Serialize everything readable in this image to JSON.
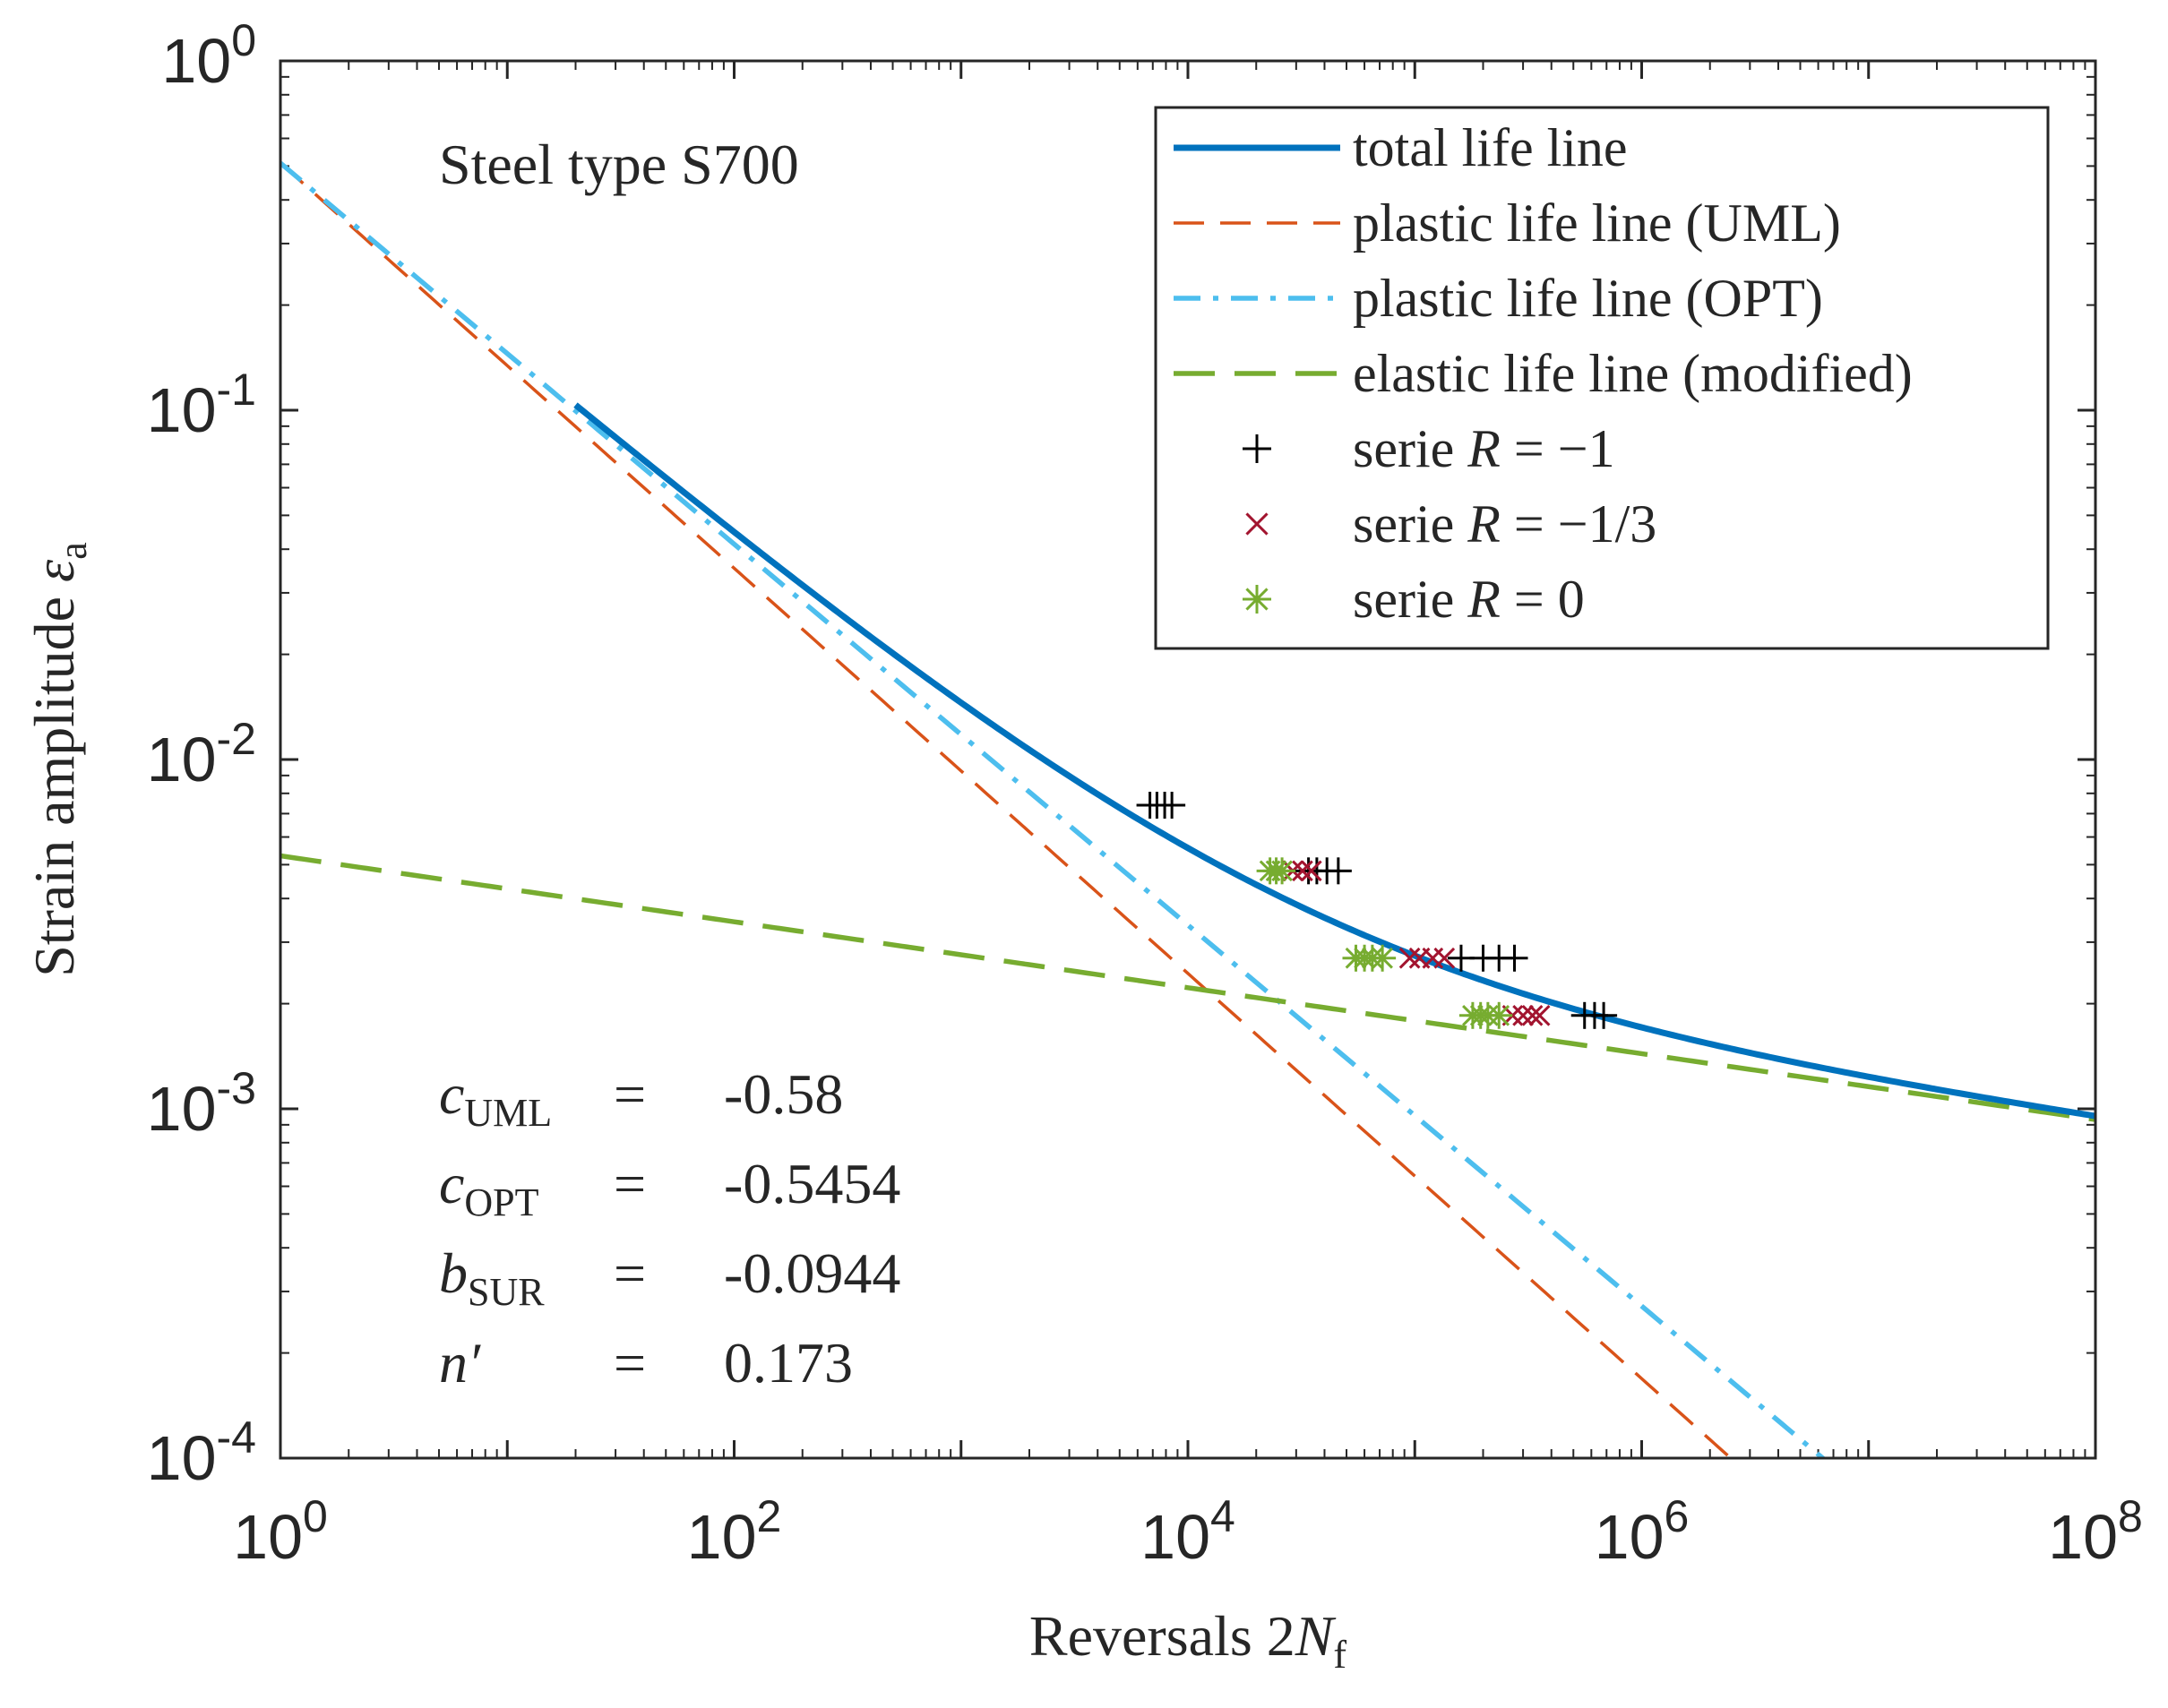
{
  "chart_data": {
    "type": "line",
    "x_scale": "log",
    "y_scale": "log",
    "xlim": [
      1,
      100000000
    ],
    "ylim": [
      0.0001,
      1
    ],
    "xlabel": {
      "text": "Reversals 2",
      "var": "N",
      "sub": "f"
    },
    "ylabel": {
      "text": "Strain amplitude ",
      "var": "ε",
      "sub": "a"
    },
    "x_ticks": [
      {
        "value": 1,
        "base": "10",
        "exp": "0"
      },
      {
        "value": 100,
        "base": "10",
        "exp": "2"
      },
      {
        "value": 10000,
        "base": "10",
        "exp": "4"
      },
      {
        "value": 1000000,
        "base": "10",
        "exp": "6"
      },
      {
        "value": 100000000,
        "base": "10",
        "exp": "8"
      }
    ],
    "y_ticks": [
      {
        "value": 0.0001,
        "base": "10",
        "exp": "-4"
      },
      {
        "value": 0.001,
        "base": "10",
        "exp": "-3"
      },
      {
        "value": 0.01,
        "base": "10",
        "exp": "-2"
      },
      {
        "value": 0.1,
        "base": "10",
        "exp": "-1"
      },
      {
        "value": 1,
        "base": "10",
        "exp": "0"
      }
    ],
    "title_annotation": "Steel type S700",
    "params": {
      "eps_f": 0.51,
      "c_opt": -0.5454,
      "c_uml": -0.58,
      "elastic_coeff": 0.0053,
      "b_sur": -0.0944,
      "total_start_x": 20,
      "total_end_x": 100000000
    },
    "series": [
      {
        "name": "total life line",
        "color": "#0072bd",
        "style": "solid",
        "kind": "total"
      },
      {
        "name": "plastic life line (UML)",
        "color": "#d95319",
        "style": "dash",
        "kind": "plastic_uml"
      },
      {
        "name": "plastic life line (OPT)",
        "color": "#4dbeee",
        "style": "dashdot",
        "kind": "plastic_opt"
      },
      {
        "name": "elastic life line (modified)",
        "color": "#77ac30",
        "style": "dash-long",
        "kind": "elastic"
      }
    ],
    "scatter": [
      {
        "name": "serie R = -1",
        "legend": {
          "prefix": "serie ",
          "var": "R",
          "eq": " = −1"
        },
        "marker": "+",
        "color": "#000000",
        "points": [
          [
            6800,
            0.0074
          ],
          [
            7300,
            0.0074
          ],
          [
            7900,
            0.0074
          ],
          [
            8500,
            0.0074
          ],
          [
            34000,
            0.0048
          ],
          [
            37000,
            0.0048
          ],
          [
            41000,
            0.0048
          ],
          [
            46000,
            0.0048
          ],
          [
            160000,
            0.0027
          ],
          [
            200000,
            0.0027
          ],
          [
            235000,
            0.0027
          ],
          [
            275000,
            0.0027
          ],
          [
            560000,
            0.00185
          ],
          [
            620000,
            0.00185
          ],
          [
            680000,
            0.00185
          ]
        ]
      },
      {
        "name": "serie R = -1/3",
        "legend": {
          "prefix": "serie ",
          "var": "R",
          "eq": " = −1/3"
        },
        "marker": "x",
        "color": "#a2142f",
        "points": [
          [
            29000,
            0.0048
          ],
          [
            32000,
            0.0048
          ],
          [
            35000,
            0.0048
          ],
          [
            95000,
            0.0027
          ],
          [
            105000,
            0.0027
          ],
          [
            120000,
            0.0027
          ],
          [
            135000,
            0.0027
          ],
          [
            270000,
            0.00185
          ],
          [
            300000,
            0.00185
          ],
          [
            330000,
            0.00185
          ],
          [
            355000,
            0.00185
          ]
        ]
      },
      {
        "name": "serie R = 0",
        "legend": {
          "prefix": "serie ",
          "var": "R",
          "eq": " = 0"
        },
        "marker": "*",
        "color": "#77ac30",
        "points": [
          [
            23000,
            0.0048
          ],
          [
            24500,
            0.0048
          ],
          [
            26000,
            0.0048
          ],
          [
            55000,
            0.0027
          ],
          [
            60000,
            0.0027
          ],
          [
            65000,
            0.0027
          ],
          [
            72000,
            0.0027
          ],
          [
            180000,
            0.00185
          ],
          [
            195000,
            0.00185
          ],
          [
            210000,
            0.00185
          ],
          [
            235000,
            0.00185
          ]
        ]
      }
    ],
    "legend_position": "top-right",
    "annotations": [
      {
        "var": "c",
        "sub": "UML",
        "eq": "=",
        "value": "-0.58"
      },
      {
        "var": "c",
        "sub": "OPT",
        "eq": "=",
        "value": "-0.5454"
      },
      {
        "var": "b",
        "sub": "SUR",
        "eq": "=",
        "value": "-0.0944"
      },
      {
        "var": "n′",
        "sub": "",
        "eq": "=",
        "value": "0.173"
      }
    ]
  }
}
